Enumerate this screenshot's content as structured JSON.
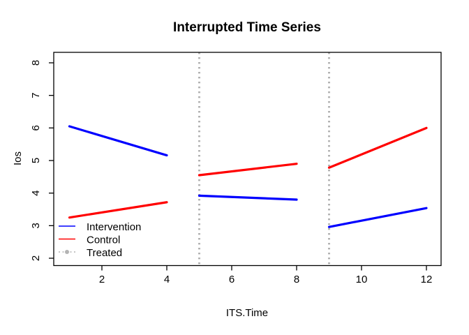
{
  "figure": {
    "background": "#FFFFFF",
    "text_color": "#000000"
  },
  "chart_data": {
    "type": "line",
    "title": "Interrupted Time Series",
    "xlabel": "ITS.Time",
    "ylabel": "Ios",
    "xlim": [
      0.56,
      12.44
    ],
    "ylim": [
      1.76,
      8.24
    ],
    "x_ticks": [
      2,
      4,
      6,
      8,
      10,
      12
    ],
    "y_ticks": [
      2,
      3,
      4,
      5,
      6,
      7,
      8
    ],
    "grid": false,
    "frame": true,
    "series": [
      {
        "name": "Intervention",
        "color": "#0000FF",
        "style": "solid",
        "line_width": 3.2,
        "segments": [
          {
            "x": [
              1,
              4
            ],
            "y": [
              6.05,
              5.16
            ]
          },
          {
            "x": [
              5,
              8
            ],
            "y": [
              3.92,
              3.8
            ]
          },
          {
            "x": [
              9,
              12
            ],
            "y": [
              2.96,
              3.54
            ]
          }
        ]
      },
      {
        "name": "Control",
        "color": "#FF0000",
        "style": "solid",
        "line_width": 3.2,
        "segments": [
          {
            "x": [
              1,
              4
            ],
            "y": [
              3.25,
              3.72
            ]
          },
          {
            "x": [
              5,
              8
            ],
            "y": [
              4.55,
              4.9
            ]
          },
          {
            "x": [
              9,
              12
            ],
            "y": [
              4.78,
              6.0
            ]
          }
        ]
      },
      {
        "name": "Treated",
        "color": "#B3B3B3",
        "style": "dotted",
        "line_width": 3,
        "vlines": [
          5,
          9
        ]
      }
    ],
    "legend": {
      "position": "bottom-left",
      "entries": [
        "Intervention",
        "Control",
        "Treated"
      ]
    }
  }
}
